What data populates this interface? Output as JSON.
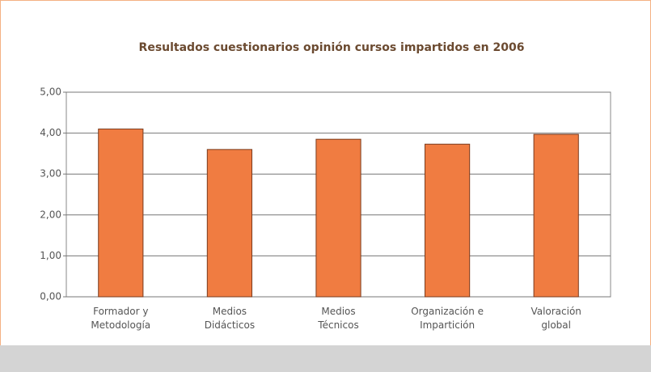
{
  "chart_data": {
    "type": "bar",
    "title": "Resultados cuestionarios opinión cursos impartidos en 2006",
    "categories": [
      "Formador y\nMetodología",
      "Medios\nDidácticos",
      "Medios\nTécnicos",
      "Organización e\nImpartición",
      "Valoración\nglobal"
    ],
    "values": [
      4.1,
      3.6,
      3.85,
      3.73,
      3.97
    ],
    "color": "#f07c41",
    "ylim": [
      0,
      5
    ],
    "yticks": [
      {
        "value": 0,
        "label": "0,00"
      },
      {
        "value": 1,
        "label": "1,00"
      },
      {
        "value": 2,
        "label": "2,00"
      },
      {
        "value": 3,
        "label": "3,00"
      },
      {
        "value": 4,
        "label": "4,00"
      },
      {
        "value": 5,
        "label": "5,00"
      }
    ],
    "grid": true
  }
}
